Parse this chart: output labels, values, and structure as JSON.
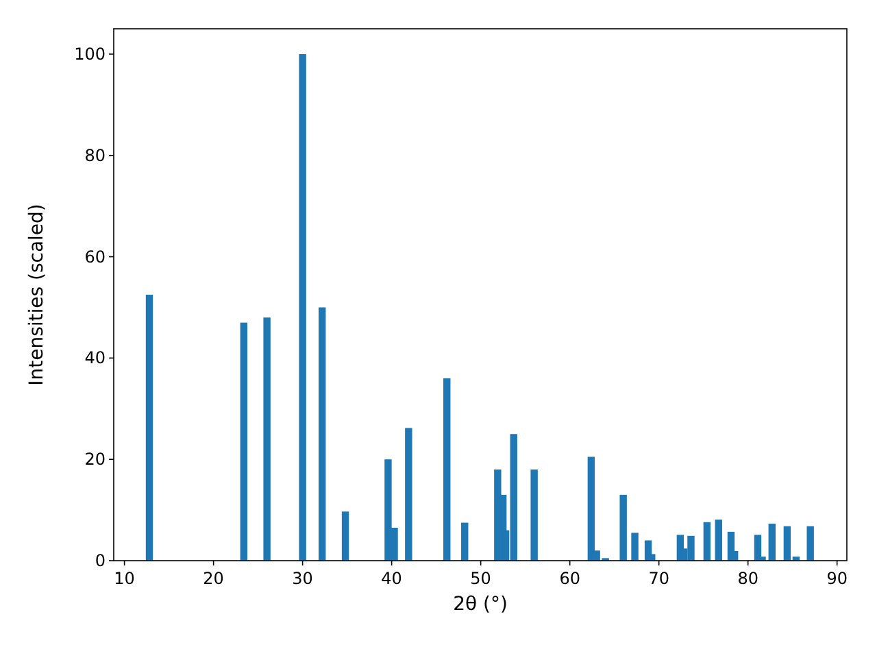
{
  "chart_data": {
    "type": "bar",
    "xlabel": "2θ (°)",
    "ylabel": "Intensities (scaled)",
    "x": [
      12.8,
      23.4,
      26.0,
      30.0,
      32.2,
      34.8,
      39.6,
      40.3,
      41.9,
      46.2,
      48.2,
      51.9,
      52.5,
      52.8,
      53.7,
      56.0,
      62.4,
      63.0,
      64.0,
      66.0,
      67.3,
      68.8,
      69.2,
      72.4,
      72.8,
      73.6,
      75.4,
      76.7,
      78.1,
      78.5,
      81.1,
      81.6,
      82.7,
      84.4,
      85.4,
      87.0
    ],
    "values": [
      52.5,
      47,
      48,
      100,
      50,
      9.7,
      20,
      6.5,
      26.2,
      36,
      7.5,
      18,
      13,
      6,
      25,
      18,
      20.5,
      2,
      0.5,
      13,
      5.5,
      4,
      1.3,
      5.1,
      2.4,
      4.9,
      7.6,
      8.1,
      5.7,
      1.9,
      5.1,
      0.8,
      7.3,
      6.8,
      0.8,
      6.8
    ],
    "color": "#1f77b4",
    "xlim": [
      8.8,
      91.1
    ],
    "xticks": [
      10,
      20,
      30,
      40,
      50,
      60,
      70,
      80,
      90
    ],
    "ylim": [
      0,
      105
    ],
    "yticks": [
      0,
      20,
      40,
      60,
      80,
      100
    ]
  }
}
